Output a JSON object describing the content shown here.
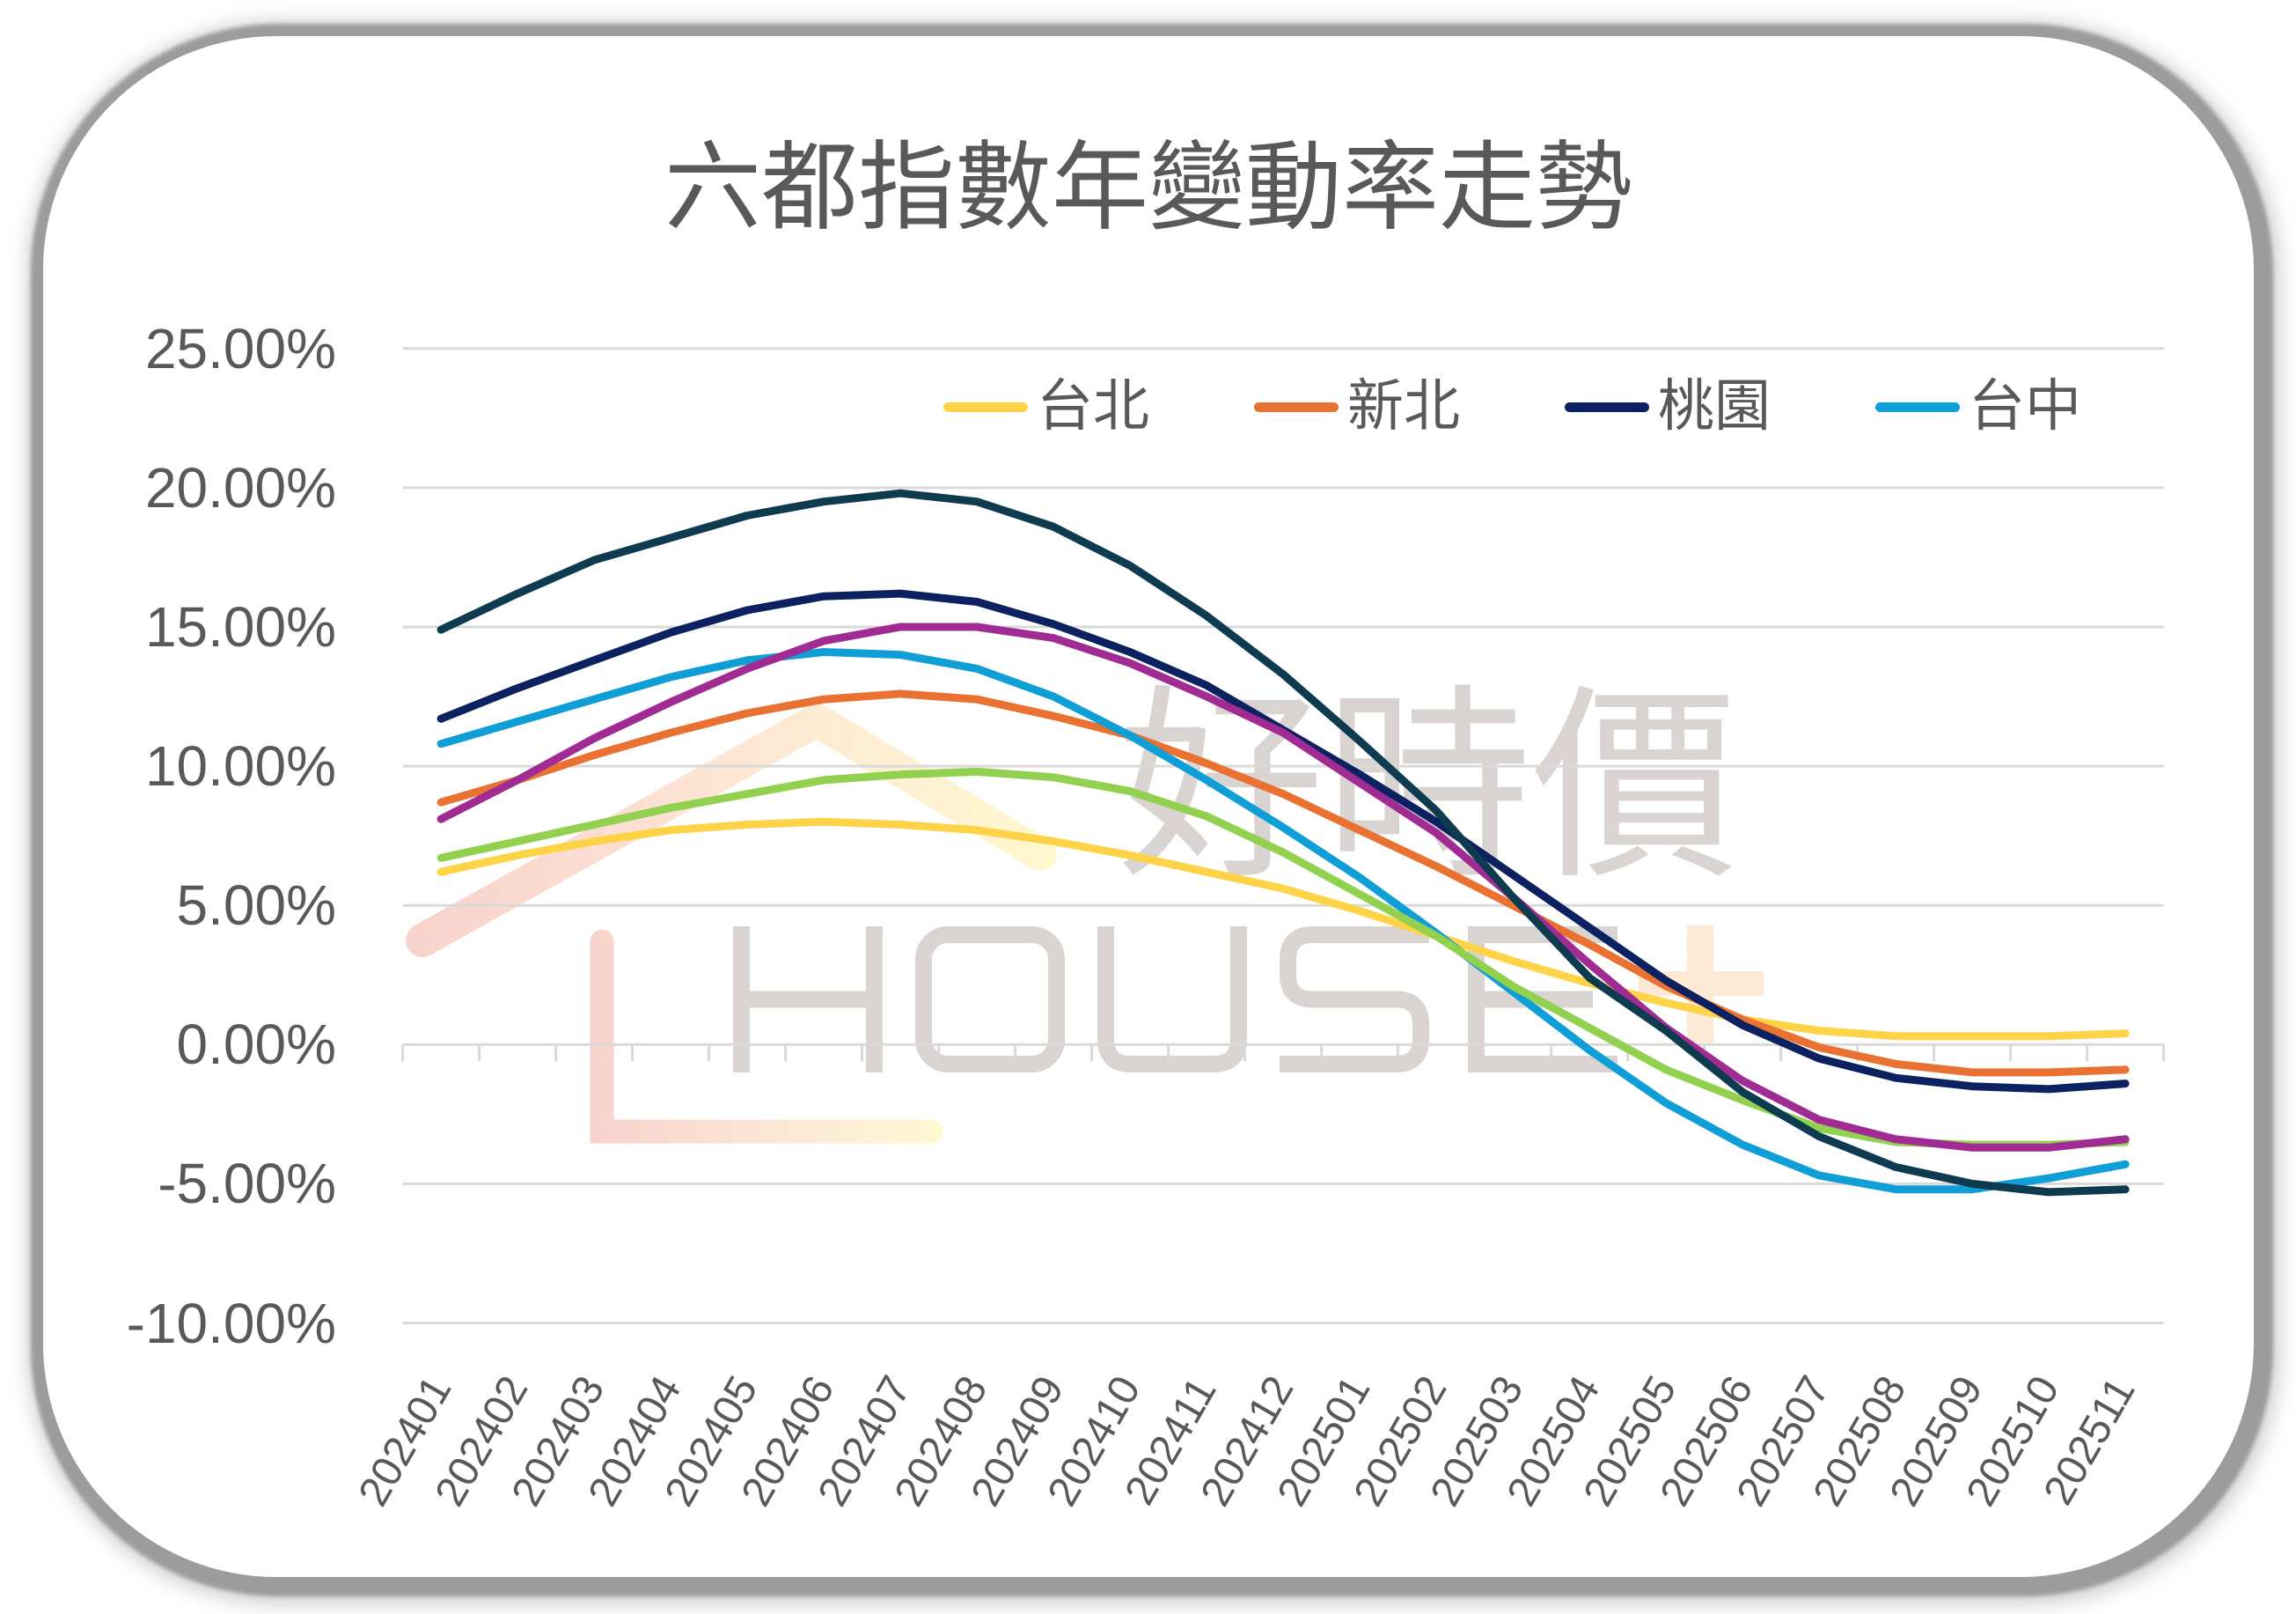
{
  "chart_data": {
    "type": "line",
    "title": "六都指數年變動率走勢",
    "xlabel": "",
    "ylabel": "",
    "ylim": [
      -10,
      25
    ],
    "grid": true,
    "legend_position": "top-right inside plot area",
    "categories": [
      "202401",
      "202402",
      "202403",
      "202404",
      "202405",
      "202406",
      "202407",
      "202408",
      "202409",
      "202410",
      "202411",
      "202412",
      "202501",
      "202502",
      "202503",
      "202504",
      "202505",
      "202506",
      "202507",
      "202508",
      "202509",
      "202510",
      "202511"
    ],
    "y_axis": {
      "ticks": [
        {
          "value": 25,
          "label": "25.00%"
        },
        {
          "value": 20,
          "label": "20.00%"
        },
        {
          "value": 15,
          "label": "15.00%"
        },
        {
          "value": 10,
          "label": "10.00%"
        },
        {
          "value": 5,
          "label": "5.00%"
        },
        {
          "value": 0,
          "label": "0.00%"
        },
        {
          "value": -5,
          "label": "-5.00%"
        },
        {
          "value": -10,
          "label": "-10.00%"
        }
      ]
    },
    "legend": [
      {
        "label": "台北",
        "color": "#FFD347"
      },
      {
        "label": "新北",
        "color": "#E97132"
      },
      {
        "label": "桃園",
        "color": "#0B2160"
      },
      {
        "label": "台中",
        "color": "#0F9ED5"
      }
    ],
    "series": [
      {
        "name": "台北",
        "color": "#FFD347",
        "in_legend": true,
        "values": [
          6.2,
          6.8,
          7.3,
          7.7,
          7.9,
          8.0,
          7.9,
          7.7,
          7.3,
          6.8,
          6.2,
          5.6,
          4.8,
          3.9,
          3.0,
          2.2,
          1.5,
          0.9,
          0.5,
          0.3,
          0.3,
          0.3,
          0.4
        ]
      },
      {
        "name": "新北",
        "color": "#E97132",
        "in_legend": true,
        "values": [
          8.7,
          9.5,
          10.4,
          11.2,
          11.9,
          12.4,
          12.6,
          12.4,
          11.8,
          11.1,
          10.1,
          9.0,
          7.7,
          6.4,
          5.0,
          3.6,
          2.1,
          0.9,
          -0.1,
          -0.7,
          -1.0,
          -1.0,
          -0.9
        ]
      },
      {
        "name": "桃園",
        "color": "#0B2160",
        "in_legend": true,
        "values": [
          11.7,
          12.8,
          13.8,
          14.8,
          15.6,
          16.1,
          16.2,
          15.9,
          15.1,
          14.1,
          12.9,
          11.3,
          9.7,
          8.0,
          6.1,
          4.2,
          2.3,
          0.7,
          -0.5,
          -1.2,
          -1.5,
          -1.6,
          -1.4
        ]
      },
      {
        "name": "台中",
        "color": "#0F9ED5",
        "in_legend": true,
        "values": [
          10.8,
          11.6,
          12.4,
          13.2,
          13.8,
          14.1,
          14.0,
          13.5,
          12.5,
          11.1,
          9.5,
          7.8,
          6.0,
          4.0,
          1.9,
          -0.2,
          -2.1,
          -3.6,
          -4.7,
          -5.2,
          -5.2,
          -4.8,
          -4.3
        ]
      },
      {
        "name": "",
        "color": "#92D050",
        "in_legend": false,
        "values": [
          6.7,
          7.3,
          7.9,
          8.5,
          9.0,
          9.5,
          9.7,
          9.8,
          9.6,
          9.1,
          8.2,
          6.9,
          5.4,
          3.9,
          2.1,
          0.6,
          -0.9,
          -2.0,
          -3.0,
          -3.5,
          -3.6,
          -3.6,
          -3.5
        ]
      },
      {
        "name": "",
        "color": "#A02B93",
        "in_legend": false,
        "values": [
          8.1,
          9.5,
          11.0,
          12.3,
          13.5,
          14.5,
          15.0,
          15.0,
          14.6,
          13.7,
          12.5,
          11.2,
          9.4,
          7.6,
          5.3,
          2.9,
          0.6,
          -1.3,
          -2.7,
          -3.4,
          -3.7,
          -3.7,
          -3.4
        ]
      },
      {
        "name": "",
        "color": "#0F3B50",
        "in_legend": false,
        "values": [
          14.9,
          16.2,
          17.4,
          18.2,
          19.0,
          19.5,
          19.8,
          19.5,
          18.6,
          17.2,
          15.4,
          13.3,
          10.9,
          8.4,
          5.3,
          2.4,
          0.5,
          -1.7,
          -3.3,
          -4.4,
          -5.0,
          -5.3,
          -5.2
        ]
      }
    ]
  },
  "watermark": {
    "brand_cjk": "好時價",
    "brand_latin": "HOUSE",
    "brand_plus": "+"
  }
}
